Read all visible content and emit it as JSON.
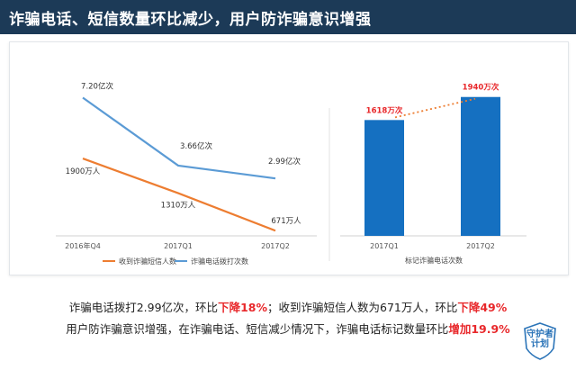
{
  "header": {
    "title": "诈骗电话、短信数量环比减少，用户防诈骗意识增强"
  },
  "colors": {
    "blue": "#5b9bd5",
    "orange": "#ed7d31",
    "bar": "#1570c1",
    "red": "#e8282b"
  },
  "chart_data": [
    {
      "type": "line",
      "categories": [
        "2016年Q4",
        "2017Q1",
        "2017Q2"
      ],
      "series": [
        {
          "name": "收到诈骗短信人数",
          "values": [
            1900,
            1310,
            671
          ],
          "labels": [
            "1900万人",
            "1310万人",
            "671万人"
          ],
          "color": "#ed7d31"
        },
        {
          "name": "诈骗电话拨打次数",
          "values": [
            7.2,
            3.66,
            2.99
          ],
          "labels": [
            "7.20亿次",
            "3.66亿次",
            "2.99亿次"
          ],
          "color": "#5b9bd5"
        }
      ],
      "legend": "bottom",
      "grid": false
    },
    {
      "type": "bar",
      "categories": [
        "2017Q1",
        "2017Q2"
      ],
      "values": [
        1618,
        1940
      ],
      "labels": [
        "1618万次",
        "1940万次"
      ],
      "legend_label": "标记诈骗电话次数",
      "trendline": "dotted",
      "grid": false
    }
  ],
  "captions": {
    "line1": {
      "a": "诈骗电话拨打2.99亿次，环比",
      "b": "下降18%",
      "c": "；收到诈骗短信人数为671万人，环比",
      "d": "下降49%"
    },
    "line2": {
      "a": "用户防诈骗意识增强，在诈骗电话、短信减少情况下，诈骗电话标记数量环比",
      "b": "增加19.9%"
    }
  },
  "badge": {
    "line1": "守护者",
    "line2": "计划"
  }
}
